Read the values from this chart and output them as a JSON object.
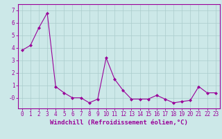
{
  "x": [
    0,
    1,
    2,
    3,
    4,
    5,
    6,
    7,
    8,
    9,
    10,
    11,
    12,
    13,
    14,
    15,
    16,
    17,
    18,
    19,
    20,
    21,
    22,
    23
  ],
  "y": [
    3.8,
    4.2,
    5.6,
    6.8,
    0.9,
    0.4,
    0.0,
    0.0,
    -0.4,
    -0.1,
    3.2,
    1.5,
    0.6,
    -0.1,
    -0.1,
    -0.1,
    0.2,
    -0.1,
    -0.4,
    -0.3,
    -0.2,
    0.9,
    0.4,
    0.4
  ],
  "line_color": "#990099",
  "marker": "D",
  "marker_size": 2.0,
  "background_color": "#cce8e8",
  "grid_color": "#aacccc",
  "xlabel": "Windchill (Refroidissement éolien,°C)",
  "xlim": [
    -0.5,
    23.5
  ],
  "ylim": [
    -0.85,
    7.5
  ],
  "ytick_vals": [
    0,
    1,
    2,
    3,
    4,
    5,
    6,
    7
  ],
  "ytick_labels": [
    "-0",
    "1",
    "2",
    "3",
    "4",
    "5",
    "6",
    "7"
  ],
  "xtick_labels": [
    "0",
    "1",
    "2",
    "3",
    "4",
    "5",
    "6",
    "7",
    "8",
    "9",
    "10",
    "11",
    "12",
    "13",
    "14",
    "15",
    "16",
    "17",
    "18",
    "19",
    "20",
    "21",
    "22",
    "23"
  ],
  "xlabel_fontsize": 6.5,
  "tick_fontsize": 5.5
}
